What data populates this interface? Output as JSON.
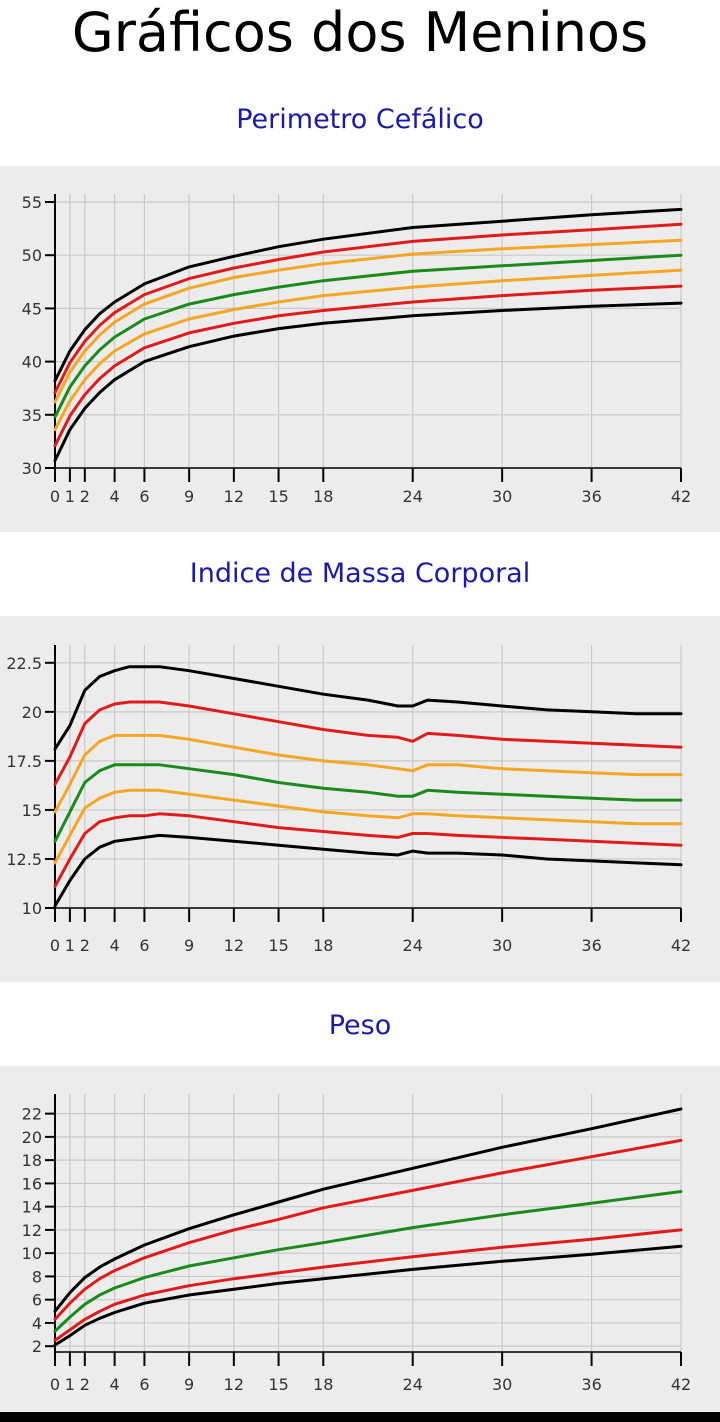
{
  "page": {
    "title": "Gráficos dos Meninos"
  },
  "colors": {
    "p3": "#000000",
    "p15": "#e01b1b",
    "p50": "#1a8a1a",
    "p85": "#e01b1b",
    "p97": "#000000",
    "p10": "#f5a623",
    "p90": "#f5a623",
    "title": "#1a1aa6",
    "panel": "#ececec",
    "grid": "#c9c9c9"
  },
  "chart_data": [
    {
      "type": "line",
      "title": "Perimetro Cefálico",
      "xlabel": "",
      "ylabel": "",
      "xlim": [
        0,
        42
      ],
      "ylim": [
        30,
        55
      ],
      "xticks": [
        0,
        1,
        2,
        4,
        6,
        9,
        12,
        15,
        18,
        24,
        30,
        36,
        42
      ],
      "xtick_labels": [
        "0",
        "1",
        "2",
        "4",
        "6",
        "9",
        "12",
        "15",
        "18",
        "24",
        "30",
        "36",
        "42"
      ],
      "yticks": [
        30,
        35,
        40,
        45,
        50,
        55
      ],
      "ytick_labels": [
        "30",
        "35",
        "40",
        "45",
        "50",
        "55"
      ],
      "grid": true,
      "x": [
        0,
        1,
        2,
        3,
        4,
        6,
        9,
        12,
        15,
        18,
        24,
        30,
        36,
        42
      ],
      "series": [
        {
          "color": "#000000",
          "values": [
            38.2,
            41.0,
            43.0,
            44.5,
            45.6,
            47.3,
            48.9,
            49.9,
            50.8,
            51.5,
            52.6,
            53.2,
            53.8,
            54.3
          ]
        },
        {
          "color": "#e01b1b",
          "values": [
            37.1,
            39.9,
            41.9,
            43.4,
            44.6,
            46.3,
            47.8,
            48.8,
            49.6,
            50.3,
            51.3,
            51.9,
            52.4,
            52.9
          ]
        },
        {
          "color": "#f5a623",
          "values": [
            36.2,
            39.0,
            41.0,
            42.5,
            43.7,
            45.4,
            46.9,
            47.9,
            48.6,
            49.2,
            50.1,
            50.6,
            51.0,
            51.4
          ]
        },
        {
          "color": "#1a8a1a",
          "values": [
            34.8,
            37.6,
            39.6,
            41.1,
            42.3,
            44.0,
            45.4,
            46.3,
            47.0,
            47.6,
            48.5,
            49.0,
            49.5,
            50.0
          ]
        },
        {
          "color": "#f5a623",
          "values": [
            33.6,
            36.3,
            38.3,
            39.8,
            41.0,
            42.6,
            44.0,
            44.9,
            45.6,
            46.2,
            47.0,
            47.6,
            48.1,
            48.6
          ]
        },
        {
          "color": "#e01b1b",
          "values": [
            32.1,
            34.9,
            36.9,
            38.4,
            39.6,
            41.3,
            42.7,
            43.6,
            44.3,
            44.8,
            45.6,
            46.2,
            46.7,
            47.1
          ]
        },
        {
          "color": "#000000",
          "values": [
            30.7,
            33.6,
            35.6,
            37.1,
            38.3,
            40.0,
            41.4,
            42.4,
            43.1,
            43.6,
            44.3,
            44.8,
            45.2,
            45.5
          ]
        }
      ]
    },
    {
      "type": "line",
      "title": "Indice de Massa Corporal",
      "xlabel": "",
      "ylabel": "",
      "xlim": [
        0,
        42
      ],
      "ylim": [
        10,
        23
      ],
      "xticks": [
        0,
        1,
        2,
        4,
        6,
        9,
        12,
        15,
        18,
        24,
        30,
        36,
        42
      ],
      "xtick_labels": [
        "0",
        "1",
        "2",
        "4",
        "6",
        "9",
        "12",
        "15",
        "18",
        "24",
        "30",
        "36",
        "42"
      ],
      "yticks": [
        10,
        12.5,
        15,
        17.5,
        20,
        22.5
      ],
      "ytick_labels": [
        "10",
        "12.5",
        "15",
        "17.5",
        "20",
        "22.5"
      ],
      "grid": true,
      "x": [
        0,
        1,
        2,
        3,
        4,
        5,
        6,
        7,
        9,
        12,
        15,
        18,
        21,
        23,
        24,
        25,
        27,
        30,
        33,
        36,
        39,
        42
      ],
      "series": [
        {
          "color": "#000000",
          "values": [
            18.1,
            19.3,
            21.1,
            21.8,
            22.1,
            22.3,
            22.3,
            22.3,
            22.1,
            21.7,
            21.3,
            20.9,
            20.6,
            20.3,
            20.3,
            20.6,
            20.5,
            20.3,
            20.1,
            20.0,
            19.9,
            19.9
          ]
        },
        {
          "color": "#e01b1b",
          "values": [
            16.3,
            17.7,
            19.4,
            20.1,
            20.4,
            20.5,
            20.5,
            20.5,
            20.3,
            19.9,
            19.5,
            19.1,
            18.8,
            18.7,
            18.5,
            18.9,
            18.8,
            18.6,
            18.5,
            18.4,
            18.3,
            18.2
          ]
        },
        {
          "color": "#f5a623",
          "values": [
            14.9,
            16.3,
            17.8,
            18.5,
            18.8,
            18.8,
            18.8,
            18.8,
            18.6,
            18.2,
            17.8,
            17.5,
            17.3,
            17.1,
            17.0,
            17.3,
            17.3,
            17.1,
            17.0,
            16.9,
            16.8,
            16.8
          ]
        },
        {
          "color": "#1a8a1a",
          "values": [
            13.4,
            14.9,
            16.4,
            17.0,
            17.3,
            17.3,
            17.3,
            17.3,
            17.1,
            16.8,
            16.4,
            16.1,
            15.9,
            15.7,
            15.7,
            16.0,
            15.9,
            15.8,
            15.7,
            15.6,
            15.5,
            15.5
          ]
        },
        {
          "color": "#f5a623",
          "values": [
            12.3,
            13.7,
            15.1,
            15.6,
            15.9,
            16.0,
            16.0,
            16.0,
            15.8,
            15.5,
            15.2,
            14.9,
            14.7,
            14.6,
            14.8,
            14.8,
            14.7,
            14.6,
            14.5,
            14.4,
            14.3,
            14.3
          ]
        },
        {
          "color": "#e01b1b",
          "values": [
            11.1,
            12.5,
            13.8,
            14.4,
            14.6,
            14.7,
            14.7,
            14.8,
            14.7,
            14.4,
            14.1,
            13.9,
            13.7,
            13.6,
            13.8,
            13.8,
            13.7,
            13.6,
            13.5,
            13.4,
            13.3,
            13.2
          ]
        },
        {
          "color": "#000000",
          "values": [
            10.1,
            11.4,
            12.5,
            13.1,
            13.4,
            13.5,
            13.6,
            13.7,
            13.6,
            13.4,
            13.2,
            13.0,
            12.8,
            12.7,
            12.9,
            12.8,
            12.8,
            12.7,
            12.5,
            12.4,
            12.3,
            12.2
          ]
        }
      ]
    },
    {
      "type": "line",
      "title": "Peso",
      "xlabel": "",
      "ylabel": "",
      "xlim": [
        0,
        42
      ],
      "ylim": [
        1.5,
        23
      ],
      "xticks": [
        0,
        1,
        2,
        4,
        6,
        9,
        12,
        15,
        18,
        24,
        30,
        36,
        42
      ],
      "xtick_labels": [
        "0",
        "1",
        "2",
        "4",
        "6",
        "9",
        "12",
        "15",
        "18",
        "24",
        "30",
        "36",
        "42"
      ],
      "yticks": [
        2,
        4,
        6,
        8,
        10,
        12,
        14,
        16,
        18,
        20,
        22
      ],
      "ytick_labels": [
        "2",
        "4",
        "6",
        "8",
        "10",
        "12",
        "14",
        "16",
        "18",
        "20",
        "22"
      ],
      "grid": true,
      "x": [
        0,
        1,
        2,
        3,
        4,
        6,
        9,
        12,
        15,
        18,
        24,
        30,
        36,
        42
      ],
      "series": [
        {
          "color": "#000000",
          "values": [
            5.0,
            6.6,
            7.9,
            8.8,
            9.5,
            10.7,
            12.1,
            13.3,
            14.4,
            15.5,
            17.3,
            19.1,
            20.7,
            22.4
          ]
        },
        {
          "color": "#e01b1b",
          "values": [
            4.3,
            5.7,
            6.9,
            7.8,
            8.5,
            9.6,
            10.9,
            12.0,
            12.9,
            13.9,
            15.4,
            16.9,
            18.3,
            19.7
          ]
        },
        {
          "color": "#1a8a1a",
          "values": [
            3.3,
            4.5,
            5.6,
            6.4,
            7.0,
            7.9,
            8.9,
            9.6,
            10.3,
            10.9,
            12.2,
            13.3,
            14.3,
            15.3
          ]
        },
        {
          "color": "#e01b1b",
          "values": [
            2.5,
            3.4,
            4.3,
            5.0,
            5.6,
            6.4,
            7.2,
            7.8,
            8.3,
            8.8,
            9.7,
            10.5,
            11.2,
            12.0
          ]
        },
        {
          "color": "#000000",
          "values": [
            2.1,
            2.9,
            3.8,
            4.4,
            4.9,
            5.7,
            6.4,
            6.9,
            7.4,
            7.8,
            8.6,
            9.3,
            9.9,
            10.6
          ]
        }
      ]
    }
  ]
}
